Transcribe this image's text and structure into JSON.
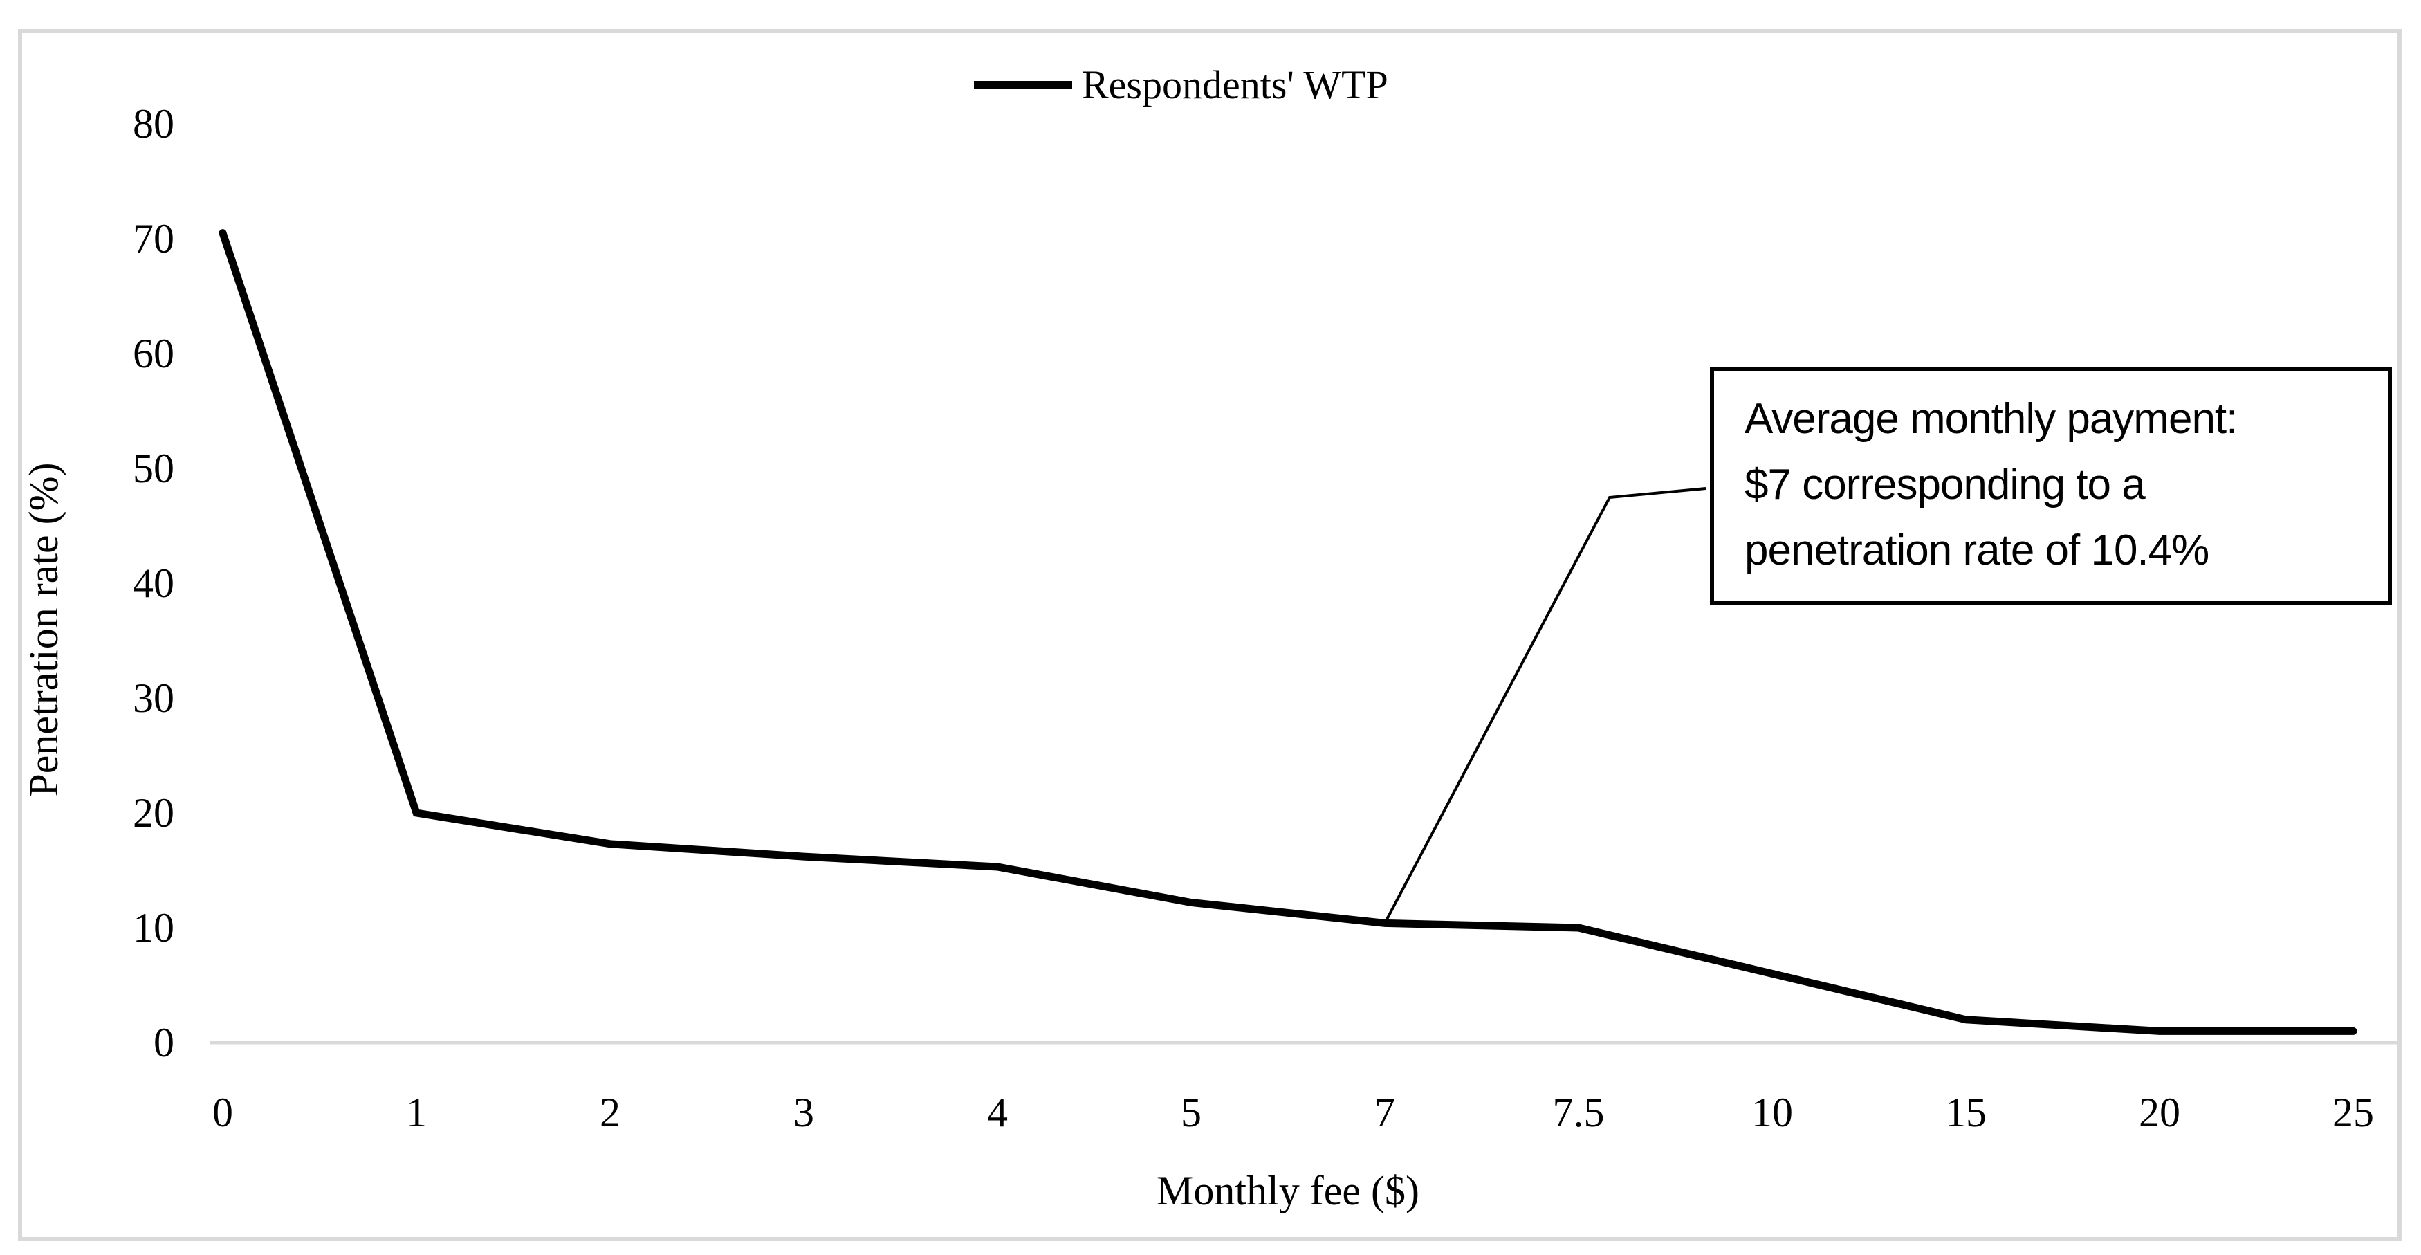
{
  "figure": {
    "background": "#ffffff",
    "border_color": "#d9d9d9"
  },
  "legend": {
    "label": "Respondents' WTP"
  },
  "annotation": {
    "lines": [
      "Average monthly payment:",
      "$7 corresponding to a",
      "penetration rate of 10.4%"
    ],
    "target_category": "7",
    "target_value": 10.4
  },
  "chart_data": {
    "type": "line",
    "title": "",
    "xlabel": "Monthly fee ($)",
    "ylabel": "Penetration rate (%)",
    "categories": [
      "0",
      "1",
      "2",
      "3",
      "4",
      "5",
      "7",
      "7.5",
      "10",
      "15",
      "20",
      "25"
    ],
    "series": [
      {
        "name": "Respondents' WTP",
        "values": [
          70.5,
          20,
          17.3,
          16.2,
          15.3,
          12.2,
          10.4,
          10,
          6,
          2,
          1,
          1
        ]
      }
    ],
    "ylim": [
      0,
      80
    ],
    "y_ticks": [
      0,
      10,
      20,
      30,
      40,
      50,
      60,
      70,
      80
    ],
    "grid": false,
    "legend_position": "top-center",
    "line_color": "#000000",
    "callout_color": "#000000",
    "axis_line_color": "#d9d9d9"
  }
}
